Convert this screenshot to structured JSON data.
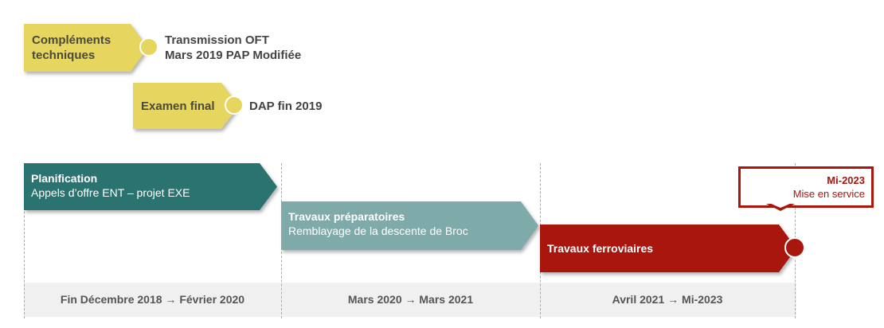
{
  "milestones": [
    {
      "label_line1": "Compléments",
      "label_line2": "techniques",
      "text_line1": "Transmission OFT",
      "text_line2": "Mars 2019 PAP Modifiée"
    },
    {
      "label": "Examen final",
      "text": "DAP fin 2019"
    }
  ],
  "phases": [
    {
      "title": "Planification",
      "subtitle": "Appels d’offre ENT – projet EXE",
      "color": "#2a7370",
      "period": "Fin Décembre 2018 → Février 2020"
    },
    {
      "title": "Travaux préparatoires",
      "subtitle": "Remblayage de la descente de Broc",
      "color": "#7eaaa9",
      "period": "Mars 2020 → Mars 2021"
    },
    {
      "title": "Travaux ferroviaires",
      "color": "#a8160e",
      "period": "Avril 2021 → Mi-2023"
    }
  ],
  "callout": {
    "title": "Mi-2023",
    "text": "Mise en service"
  },
  "colors": {
    "milestone": "#e6d55f",
    "band": "#f0f0f0"
  }
}
